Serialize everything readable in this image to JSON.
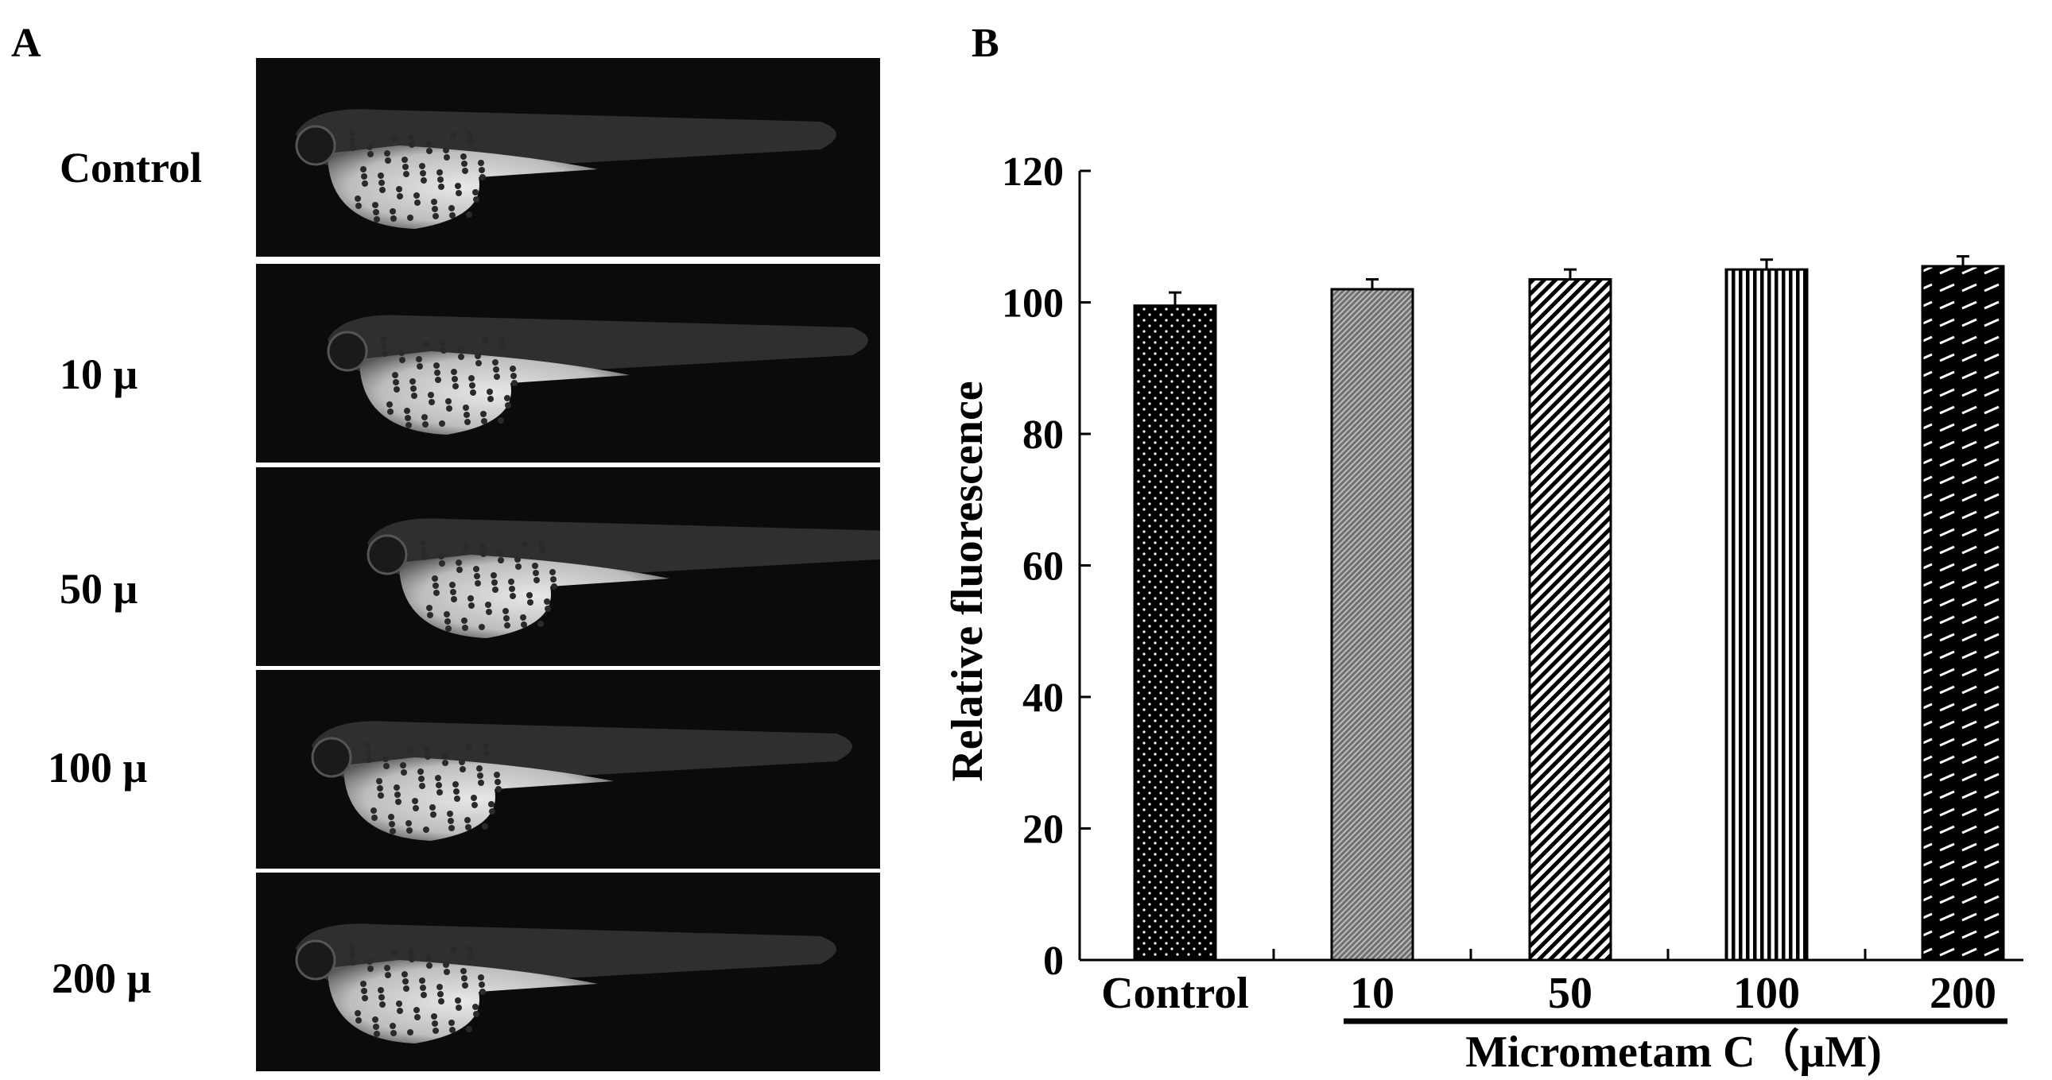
{
  "panels": {
    "a_label": "A",
    "b_label": "B"
  },
  "images": [
    {
      "label": "Control"
    },
    {
      "label": "10 μ"
    },
    {
      "label": "50 μ"
    },
    {
      "label": "100 μ"
    },
    {
      "label": "200 μ"
    }
  ],
  "chart_data": {
    "type": "bar",
    "title": "",
    "ylabel": "Relative fluorescence",
    "xlabel": "",
    "categories": [
      "Control",
      "10",
      "50",
      "100",
      "200"
    ],
    "values": [
      99.5,
      102,
      103.5,
      105,
      105.5
    ],
    "errors": [
      2,
      1.5,
      1.5,
      1.5,
      1.5
    ],
    "ylim": [
      0,
      120
    ],
    "yticks": [
      0,
      20,
      40,
      60,
      80,
      100,
      120
    ],
    "group_label": "Micrometam C（μM)",
    "grid": false,
    "legend": "none",
    "colors": {
      "bar_fill": "#000000",
      "pattern_fg": "#ffffff",
      "stroke": "#000000"
    }
  }
}
